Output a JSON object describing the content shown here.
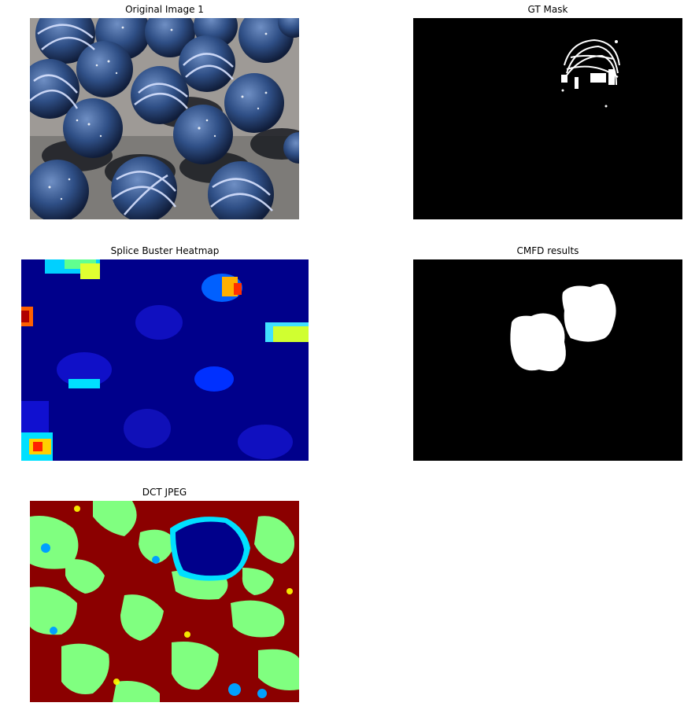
{
  "figure": {
    "panels": [
      {
        "title": "Original Image 1",
        "kind": "photo"
      },
      {
        "title": "GT Mask",
        "kind": "mask"
      },
      {
        "title": "Splice Buster Heatmap",
        "kind": "heatmap"
      },
      {
        "title": "CMFD results",
        "kind": "mask"
      },
      {
        "title": "DCT JPEG",
        "kind": "heatmap"
      }
    ],
    "colors": {
      "jet_dark_blue": "#00008b",
      "jet_blue": "#0000ff",
      "jet_cyan": "#00ffff",
      "jet_green": "#80ff80",
      "jet_yellow": "#ffff00",
      "jet_red": "#ff0000",
      "jet_dark_red": "#8b0000",
      "mask_black": "#000000",
      "mask_white": "#ffffff"
    }
  }
}
